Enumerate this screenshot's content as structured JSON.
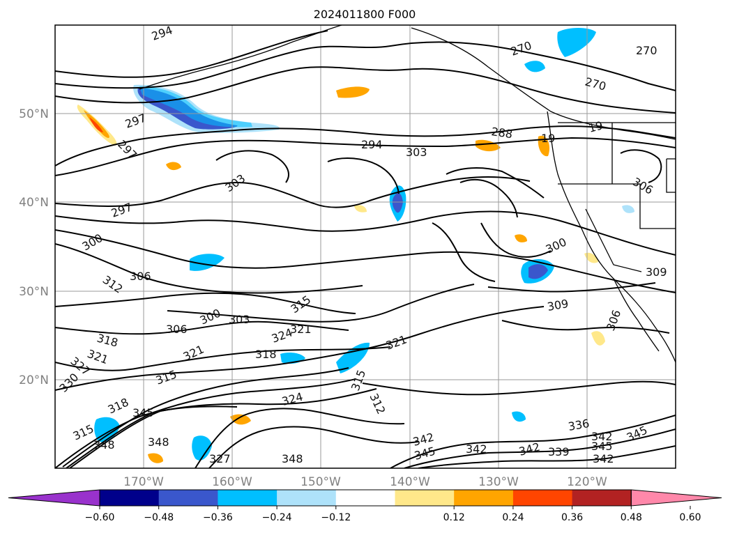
{
  "title": "2024011800 F000",
  "map": {
    "lon_range": [
      -180,
      -110
    ],
    "lat_range": [
      10,
      60
    ],
    "lat_ticks": [
      "50°N",
      "40°N",
      "30°N",
      "20°N"
    ],
    "lon_ticks": [
      "170°W",
      "160°W",
      "150°W",
      "140°W",
      "130°W",
      "120°W"
    ],
    "grid": true,
    "contour_labels": [
      "294",
      "270",
      "270",
      "270",
      "297",
      "297",
      "288",
      "294",
      "303",
      "19",
      "19",
      "303",
      "306",
      "297",
      "300",
      "306",
      "312",
      "315",
      "300",
      "303",
      "306",
      "321",
      "309",
      "306",
      "309",
      "300",
      "318",
      "321",
      "327",
      "321",
      "324",
      "315",
      "318",
      "321",
      "330",
      "312",
      "315",
      "318",
      "324",
      "315",
      "345",
      "348",
      "348",
      "327",
      "348",
      "345",
      "342",
      "342",
      "342",
      "339",
      "336",
      "342",
      "345",
      "342",
      "345"
    ]
  },
  "colorbar": {
    "ticks": [
      "−0.60",
      "−0.48",
      "−0.36",
      "−0.24",
      "−0.12",
      "0.12",
      "0.24",
      "0.36",
      "0.48",
      "0.60"
    ],
    "colors": [
      "#9932cc",
      "#00008b",
      "#3a57cc",
      "#00bfff",
      "#aee2fa",
      "#ffffff",
      "#ffe88a",
      "#ffa500",
      "#ff4500",
      "#b22222",
      "#ff88aa"
    ]
  }
}
